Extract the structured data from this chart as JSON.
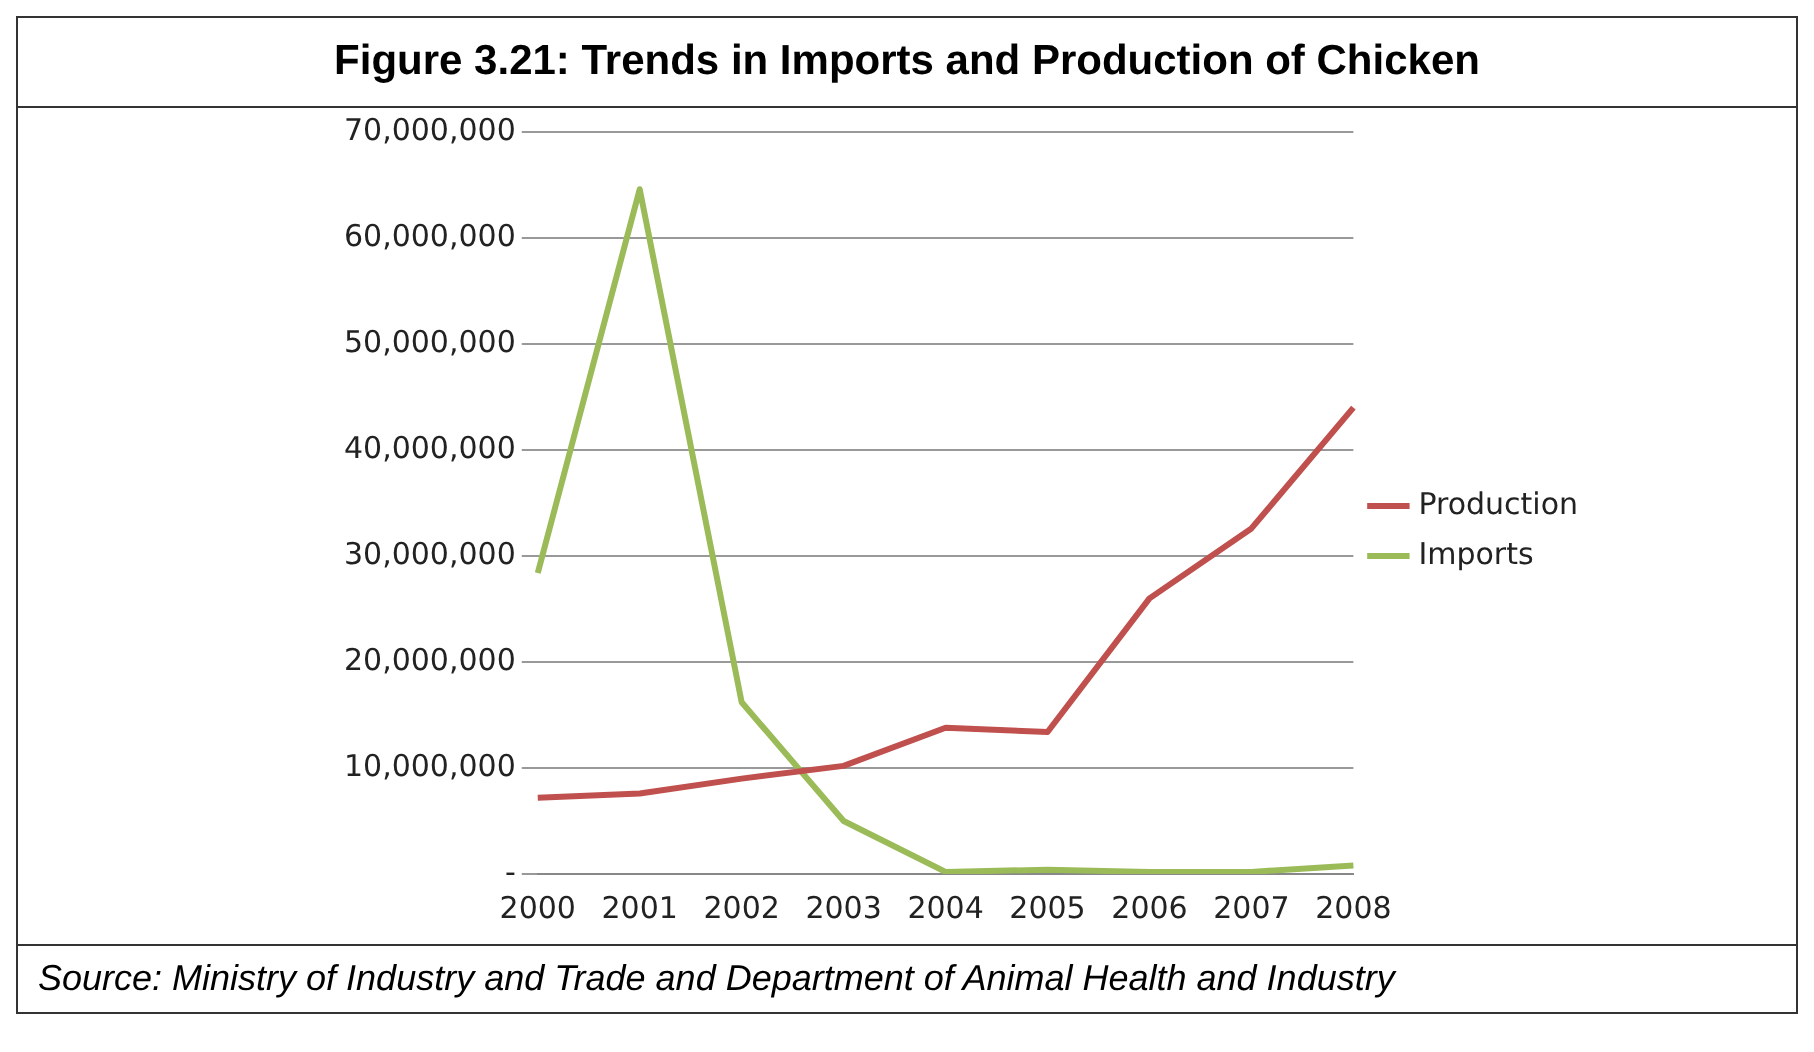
{
  "chart_data": {
    "type": "line",
    "title": "Figure 3.21: Trends in Imports and Production of Chicken",
    "categories": [
      "2000",
      "2001",
      "2002",
      "2003",
      "2004",
      "2005",
      "2006",
      "2007",
      "2008"
    ],
    "series": [
      {
        "name": "Production",
        "color": "#c0504d",
        "values": [
          7200000,
          7600000,
          9000000,
          10200000,
          13800000,
          13400000,
          26000000,
          32600000,
          44000000
        ]
      },
      {
        "name": "Imports",
        "color": "#9bbb59",
        "values": [
          28400000,
          64600000,
          16200000,
          5000000,
          200000,
          400000,
          200000,
          200000,
          800000
        ]
      }
    ],
    "ylim": [
      0,
      70000000
    ],
    "yticks": [
      {
        "value": 0,
        "label": "-"
      },
      {
        "value": 10000000,
        "label": "10,000,000"
      },
      {
        "value": 20000000,
        "label": "20,000,000"
      },
      {
        "value": 30000000,
        "label": "30,000,000"
      },
      {
        "value": 40000000,
        "label": "40,000,000"
      },
      {
        "value": 50000000,
        "label": "50,000,000"
      },
      {
        "value": 60000000,
        "label": "60,000,000"
      },
      {
        "value": 70000000,
        "label": "70,000,000"
      }
    ],
    "grid": "y",
    "legend": "right",
    "marker": "none",
    "line_style": "solid",
    "annotations": [
      "Source: Ministry of Industry and Trade and Department of Animal Health and Industry"
    ]
  }
}
